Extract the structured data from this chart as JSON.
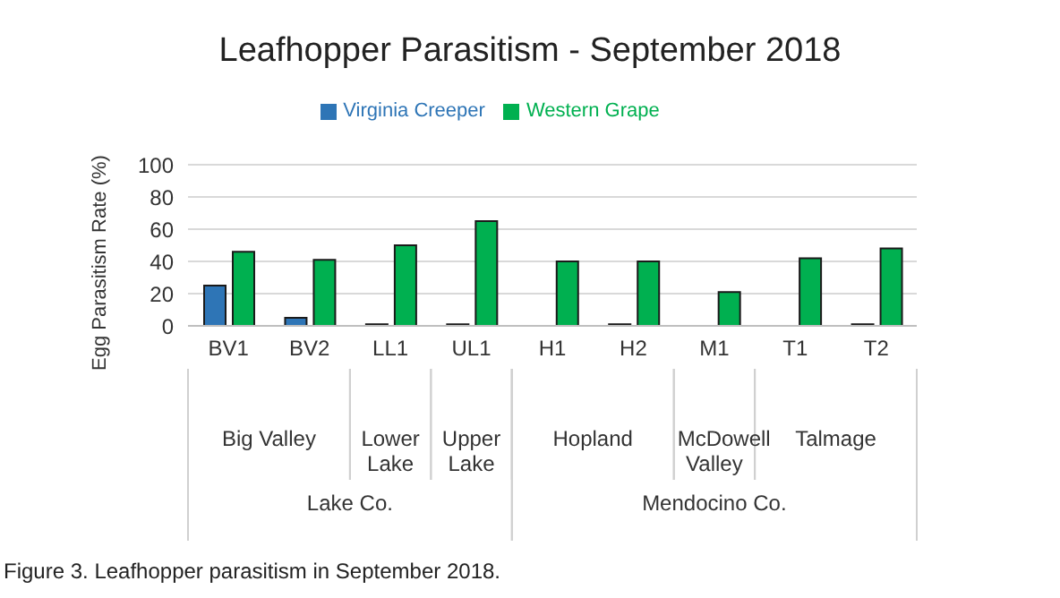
{
  "chart_data": {
    "type": "bar",
    "title": "Leafhopper Parasitism - September 2018",
    "ylabel": "Egg Parasitism Rate (%)",
    "categories": [
      "BV1",
      "BV2",
      "LL1",
      "UL1",
      "H1",
      "H2",
      "M1",
      "T1",
      "T2"
    ],
    "series": [
      {
        "name": "Virginia Creeper",
        "color": "#2e75b6",
        "values": [
          25,
          5,
          1,
          1,
          0,
          1,
          0,
          0,
          1
        ]
      },
      {
        "name": "Western Grape",
        "color": "#00b050",
        "values": [
          46,
          41,
          50,
          65,
          40,
          40,
          21,
          42,
          48
        ]
      }
    ],
    "ylim": [
      0,
      100
    ],
    "yticks": [
      0,
      20,
      40,
      60,
      80,
      100
    ],
    "grid": "y",
    "legend": "top",
    "annotations": [
      "Big Valley",
      "Lower Lake",
      "Upper Lake",
      "Hopland",
      "McDowell Valley",
      "Talmage",
      "Lake Co.",
      "Mendocino Co.",
      "Figure 3. Leafhopper parasitism in September 2018."
    ]
  }
}
